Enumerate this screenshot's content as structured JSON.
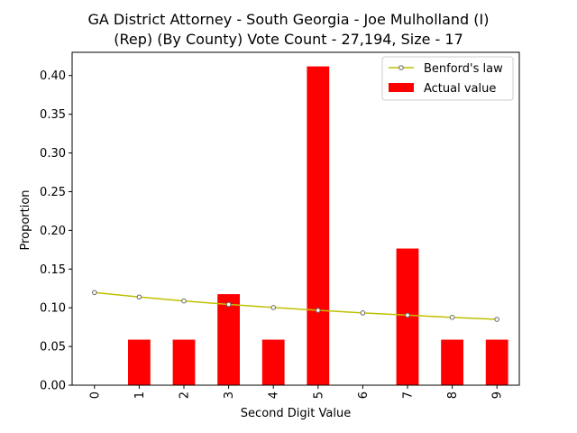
{
  "chart_data": {
    "type": "bar",
    "title_line1": "GA District Attorney - South Georgia - Joe Mulholland (I)",
    "title_line2": "(Rep) (By County) Vote Count - 27,194, Size - 17",
    "xlabel": "Second Digit Value",
    "ylabel": "Proportion",
    "categories": [
      "0",
      "1",
      "2",
      "3",
      "4",
      "5",
      "6",
      "7",
      "8",
      "9"
    ],
    "ylim": [
      0,
      0.43
    ],
    "yticks": [
      "0.00",
      "0.05",
      "0.10",
      "0.15",
      "0.20",
      "0.25",
      "0.30",
      "0.35",
      "0.40"
    ],
    "series": [
      {
        "name": "Actual value",
        "kind": "bar",
        "color": "#ff0000",
        "values": [
          0.0,
          0.0588,
          0.0588,
          0.1176,
          0.0588,
          0.4118,
          0.0,
          0.1765,
          0.0588,
          0.0588
        ]
      },
      {
        "name": "Benford's law",
        "kind": "line",
        "color": "#bfbf00",
        "values": [
          0.1197,
          0.1139,
          0.1088,
          0.1043,
          0.1003,
          0.0967,
          0.0934,
          0.0904,
          0.0876,
          0.085
        ]
      }
    ],
    "legend": "top-right",
    "grid": false
  }
}
